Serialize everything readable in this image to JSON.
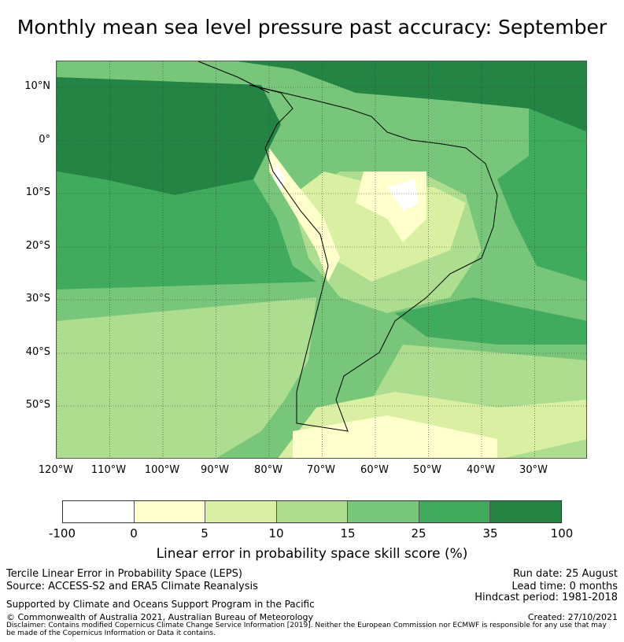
{
  "title": "Monthly mean sea level pressure past accuracy: September",
  "map": {
    "lat_labels": [
      "10°N",
      "0°",
      "10°S",
      "20°S",
      "30°S",
      "40°S",
      "50°S"
    ],
    "lon_labels": [
      "120°W",
      "110°W",
      "100°W",
      "90°W",
      "80°W",
      "70°W",
      "60°W",
      "50°W",
      "40°W",
      "30°W"
    ]
  },
  "colorbar": {
    "ticks": [
      "-100",
      "0",
      "5",
      "10",
      "15",
      "25",
      "35",
      "100"
    ],
    "colors": [
      "#ffffff",
      "#ffffcc",
      "#d9f0a3",
      "#addd8e",
      "#78c679",
      "#41ab5d",
      "#238443"
    ],
    "label": "Linear error in probability space skill score (%)"
  },
  "footer": {
    "left_line1": "Tercile Linear Error in Probability Space (LEPS)",
    "left_line2": "Source: ACCESS-S2 and ERA5 Climate Reanalysis",
    "supported": "Supported by Climate and Oceans Support Program in the Pacific",
    "copyright": "© Commonwealth of Australia 2021, Australian Bureau of Meteorology",
    "disclaimer1": "Disclaimer: Contains modified Copernicus Climate Change Service Information [2019]. Neither the European Commission nor ECMWF is responsible for any use that may",
    "disclaimer2": "be made of the Copernicus Information or Data it contains.",
    "run_date": "Run date: 25 August",
    "lead_time": "Lead time: 0 months",
    "hindcast": "Hindcast period: 1981-2018",
    "created": "Created: 27/10/2021"
  }
}
